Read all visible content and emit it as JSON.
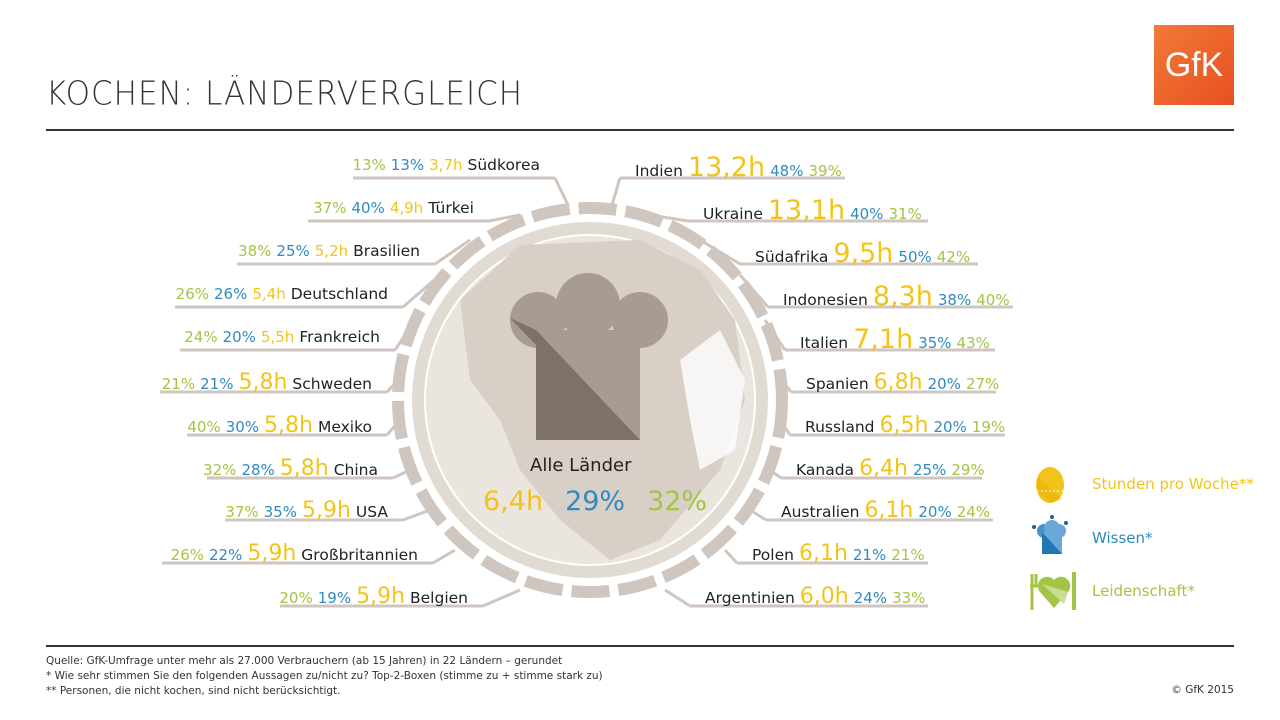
{
  "title": "KOCHEN: LÄNDERVERGLEICH",
  "logo": "GfK",
  "colors": {
    "hours": "#f2c419",
    "knowledge": "#2f8bbf",
    "passion": "#a3c444",
    "globe": "#e6dfd8",
    "ring": "#cfc6bf",
    "logo": "#e8501f"
  },
  "left_countries": [
    {
      "name": "Südkorea",
      "hours": "3,7h",
      "knowledge": "13%",
      "passion": "13%"
    },
    {
      "name": "Türkei",
      "hours": "4,9h",
      "knowledge": "40%",
      "passion": "37%"
    },
    {
      "name": "Brasilien",
      "hours": "5,2h",
      "knowledge": "25%",
      "passion": "38%"
    },
    {
      "name": "Deutschland",
      "hours": "5,4h",
      "knowledge": "26%",
      "passion": "26%"
    },
    {
      "name": "Frankreich",
      "hours": "5,5h",
      "knowledge": "20%",
      "passion": "24%"
    },
    {
      "name": "Schweden",
      "hours": "5,8h",
      "knowledge": "21%",
      "passion": "21%"
    },
    {
      "name": "Mexiko",
      "hours": "5,8h",
      "knowledge": "30%",
      "passion": "40%"
    },
    {
      "name": "China",
      "hours": "5,8h",
      "knowledge": "28%",
      "passion": "32%"
    },
    {
      "name": "USA",
      "hours": "5,9h",
      "knowledge": "35%",
      "passion": "37%"
    },
    {
      "name": "Großbritannien",
      "hours": "5,9h",
      "knowledge": "22%",
      "passion": "26%"
    },
    {
      "name": "Belgien",
      "hours": "5,9h",
      "knowledge": "19%",
      "passion": "20%"
    }
  ],
  "right_countries": [
    {
      "name": "Indien",
      "hours": "13,2h",
      "knowledge": "48%",
      "passion": "39%"
    },
    {
      "name": "Ukraine",
      "hours": "13,1h",
      "knowledge": "40%",
      "passion": "31%"
    },
    {
      "name": "Südafrika",
      "hours": "9,5h",
      "knowledge": "50%",
      "passion": "42%"
    },
    {
      "name": "Indonesien",
      "hours": "8,3h",
      "knowledge": "38%",
      "passion": "40%"
    },
    {
      "name": "Italien",
      "hours": "7,1h",
      "knowledge": "35%",
      "passion": "43%"
    },
    {
      "name": "Spanien",
      "hours": "6,8h",
      "knowledge": "20%",
      "passion": "27%"
    },
    {
      "name": "Russland",
      "hours": "6,5h",
      "knowledge": "20%",
      "passion": "19%"
    },
    {
      "name": "Kanada",
      "hours": "6,4h",
      "knowledge": "25%",
      "passion": "29%"
    },
    {
      "name": "Australien",
      "hours": "6,1h",
      "knowledge": "20%",
      "passion": "24%"
    },
    {
      "name": "Polen",
      "hours": "6,1h",
      "knowledge": "21%",
      "passion": "21%"
    },
    {
      "name": "Argentinien",
      "hours": "6,0h",
      "knowledge": "24%",
      "passion": "33%"
    }
  ],
  "all_countries": {
    "label": "Alle Länder",
    "hours": "6,4h",
    "knowledge": "29%",
    "passion": "32%"
  },
  "legend": [
    {
      "label": "Stunden pro Woche**",
      "icon": "egg-timer-icon"
    },
    {
      "label": "Wissen*",
      "icon": "chef-hat-icon"
    },
    {
      "label": "Leidenschaft*",
      "icon": "heart-cutlery-icon"
    }
  ],
  "footer": {
    "source": "Quelle: GfK-Umfrage unter mehr als 27.000 Verbrauchern (ab 15 Jahren) in 22 Ländern – gerundet",
    "note1": "*   Wie sehr stimmen Sie den folgenden Aussagen zu/nicht zu? Top-2-Boxen (stimme zu + stimme stark zu)",
    "note2": "**  Personen, die nicht kochen, sind nicht berücksichtigt.",
    "copyright": "© GfK 2015"
  }
}
